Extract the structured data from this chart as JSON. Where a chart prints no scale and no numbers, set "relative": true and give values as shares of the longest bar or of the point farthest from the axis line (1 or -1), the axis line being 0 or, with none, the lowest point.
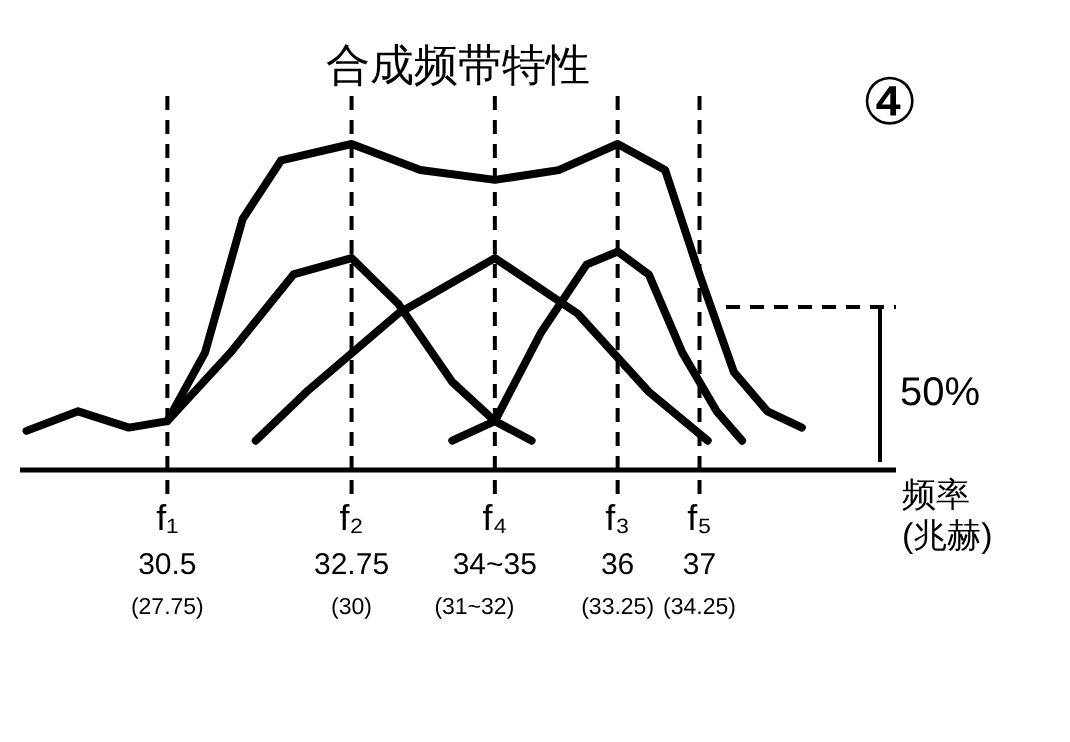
{
  "chart_data": {
    "type": "line",
    "relative": true,
    "title": "合成频带特性",
    "xlabel": "频率\n(兆赫)",
    "annotations": [
      "④"
    ],
    "xlim": [
      28.7,
      39.4
    ],
    "xticks": [
      30.5,
      32.75,
      {
        "value": 34.5,
        "label": "34~35"
      },
      36,
      37
    ],
    "x2lim": [
      25.95,
      36.65
    ],
    "x2ticks": [
      {
        "value": 27.75,
        "label": "(27.75)"
      },
      {
        "value": 30,
        "label": "(30)"
      },
      {
        "value": 31.5,
        "label": "(31~32)"
      },
      {
        "value": 33.25,
        "label": "(33.25)"
      },
      {
        "value": 34.25,
        "label": "(34.25)"
      }
    ],
    "ref_lines": [
      {
        "axis": "x",
        "value": 30.5,
        "label": "f₁",
        "line_style": "dashed"
      },
      {
        "axis": "x",
        "value": 32.75,
        "label": "f₂",
        "line_style": "dashed"
      },
      {
        "axis": "x",
        "value": 34.5,
        "label": "f₄",
        "line_style": "dashed"
      },
      {
        "axis": "x",
        "value": 36,
        "label": "f₃",
        "line_style": "dashed"
      },
      {
        "axis": "x",
        "value": 37,
        "label": "f₅",
        "line_style": "dashed"
      },
      {
        "axis": "y",
        "value": 0.5,
        "label": "50%",
        "line_style": "dashed"
      }
    ],
    "line_style": "solid",
    "marker": "none",
    "grid": false,
    "series": [
      {
        "color": "#000000",
        "x": [
          28.78,
          29.41,
          30.03,
          30.5,
          30.96,
          31.42,
          31.89,
          32.75,
          33.59,
          34.5,
          35.28,
          36,
          36.58,
          37,
          37.42,
          37.83,
          38.25
        ],
        "values": [
          0.12,
          0.18,
          0.13,
          0.15,
          0.36,
          0.77,
          0.95,
          1.0,
          0.92,
          0.89,
          0.92,
          1.0,
          0.92,
          0.6,
          0.3,
          0.18,
          0.13
        ]
      },
      {
        "color": "#000000",
        "x": [
          30.5,
          31.27,
          32.04,
          32.75,
          33.32,
          33.98,
          34.5,
          34.95
        ],
        "values": [
          0.15,
          0.36,
          0.6,
          0.65,
          0.51,
          0.27,
          0.15,
          0.09
        ]
      },
      {
        "color": "#000000",
        "x": [
          31.58,
          32.2,
          33.32,
          34.5,
          35.51,
          36.38,
          37.1
        ],
        "values": [
          0.09,
          0.24,
          0.48,
          0.65,
          0.48,
          0.24,
          0.09
        ]
      },
      {
        "color": "#000000",
        "x": [
          33.98,
          34.5,
          35.06,
          35.62,
          36,
          36.38,
          36.79,
          37.21,
          37.52
        ],
        "values": [
          0.09,
          0.15,
          0.42,
          0.63,
          0.67,
          0.6,
          0.36,
          0.18,
          0.09
        ]
      }
    ]
  }
}
